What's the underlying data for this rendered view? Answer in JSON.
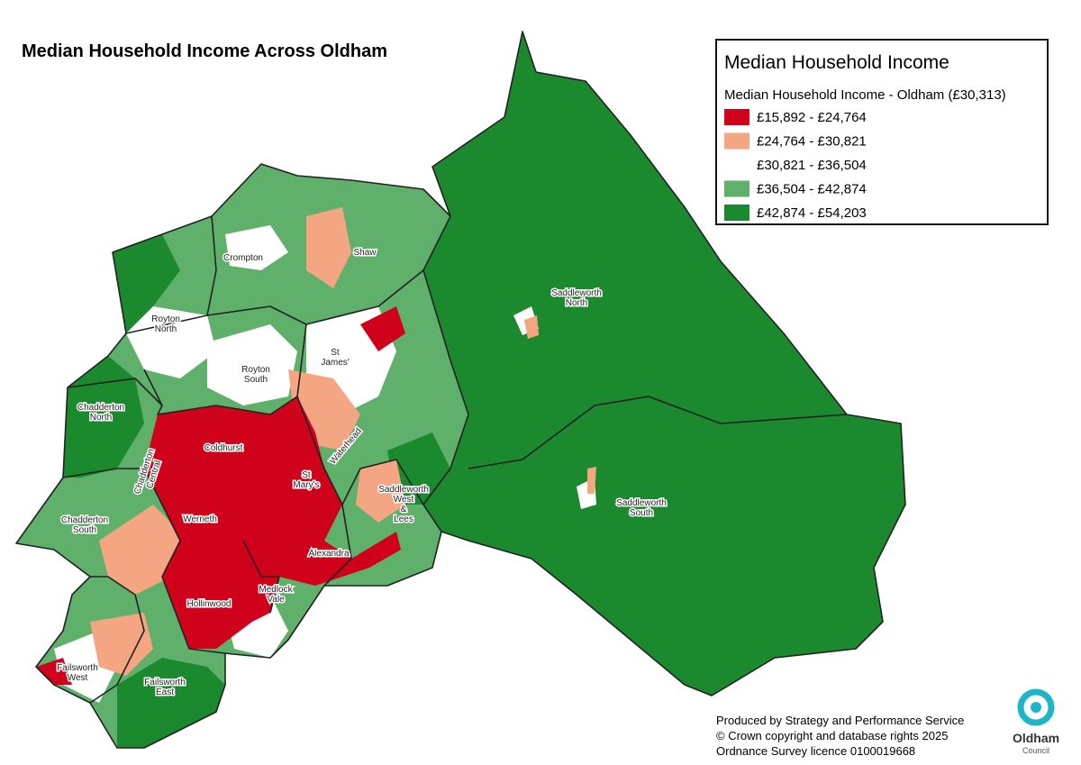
{
  "title": "Median Household Income Across Oldham",
  "legend": {
    "title": "Median Household Income",
    "subtitle": "Median Household Income - Oldham (£30,313)",
    "entries": [
      {
        "label": "£15,892 - £24,764",
        "color": "#d0021b"
      },
      {
        "label": "£24,764 - £30,821",
        "color": "#f4a582"
      },
      {
        "label": "£30,821 - £36,504",
        "color": "#ffffff"
      },
      {
        "label": "£36,504 - £42,874",
        "color": "#5fb06a"
      },
      {
        "label": "£42,874 - £54,203",
        "color": "#1b8a2e"
      }
    ]
  },
  "wards": [
    {
      "lines": [
        "Crompton"
      ]
    },
    {
      "lines": [
        "Shaw"
      ]
    },
    {
      "lines": [
        "Royton",
        "North"
      ]
    },
    {
      "lines": [
        "Royton",
        "South"
      ]
    },
    {
      "lines": [
        "St",
        "James'"
      ]
    },
    {
      "lines": [
        "Saddleworth",
        "North"
      ]
    },
    {
      "lines": [
        "Chadderton",
        "North"
      ]
    },
    {
      "lines": [
        "Coldhurst"
      ]
    },
    {
      "lines": [
        "Chadderton",
        "Central"
      ]
    },
    {
      "lines": [
        "St",
        "Mary's"
      ]
    },
    {
      "lines": [
        "Waterhead"
      ]
    },
    {
      "lines": [
        "Saddleworth",
        "West",
        "&",
        "Lees"
      ]
    },
    {
      "lines": [
        "Werneth"
      ]
    },
    {
      "lines": [
        "Chadderton",
        "South"
      ]
    },
    {
      "lines": [
        "Saddleworth",
        "South"
      ]
    },
    {
      "lines": [
        "Alexandra"
      ]
    },
    {
      "lines": [
        "Medlock",
        "Vale"
      ]
    },
    {
      "lines": [
        "Hollinwood"
      ]
    },
    {
      "lines": [
        "Failsworth",
        "West"
      ]
    },
    {
      "lines": [
        "Failsworth",
        "East"
      ]
    }
  ],
  "credits": [
    "Produced by Strategy and Performance Service",
    "© Crown copyright and database rights 2025",
    "Ordnance Survey licence 0100019668"
  ],
  "logo": {
    "name": "Oldham",
    "sub": "Council"
  }
}
